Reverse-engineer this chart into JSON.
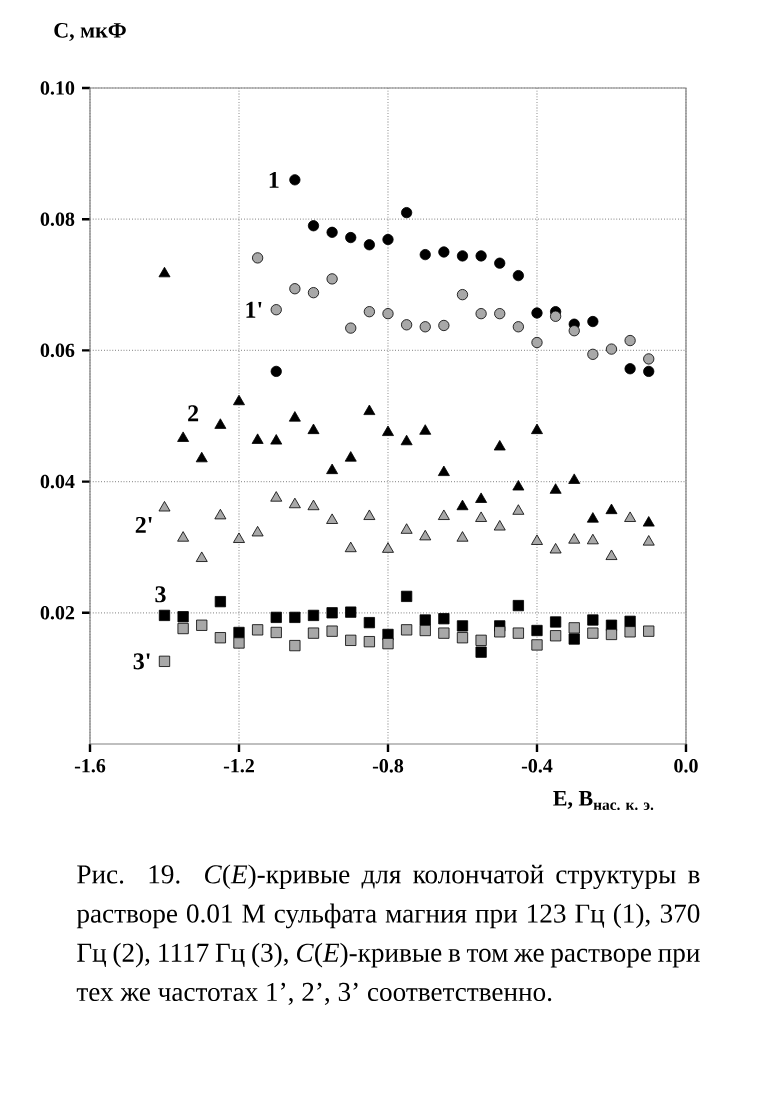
{
  "chart_data": {
    "type": "scatter",
    "xlabel": "\\text{E, B}_{\\text{нас. к. э.}}",
    "ylabel": "C, мкФ",
    "xlim": [
      -1.6,
      0.0
    ],
    "ylim": [
      0,
      0.1
    ],
    "xticks": [
      -1.6,
      -1.2,
      -0.8,
      -0.4,
      {
        "value": 0.0,
        "label": "0.0"
      }
    ],
    "yticks": [
      0.02,
      0.04,
      0.06,
      0.08,
      {
        "value": 0.1,
        "label": "0.10"
      }
    ],
    "grid": true,
    "legend": false,
    "series": [
      {
        "name": "1",
        "color": "#000000",
        "marker": "circle",
        "x": [
          -1.05,
          -1.0,
          -0.95,
          -0.9,
          -0.85,
          -0.8,
          -0.75,
          -0.7,
          -0.65,
          -0.6,
          -0.55,
          -0.5,
          -0.45,
          -0.4,
          -0.35,
          -0.3,
          -0.25,
          -0.15,
          -0.1,
          -1.1
        ],
        "values": [
          0.086,
          0.079,
          0.078,
          0.0772,
          0.0761,
          0.0769,
          0.081,
          0.0746,
          0.075,
          0.0744,
          0.0744,
          0.0733,
          0.0714,
          0.0657,
          0.0659,
          0.064,
          0.0644,
          0.0572,
          0.0568,
          0.0568
        ]
      },
      {
        "name": "1'",
        "color": "#a8a8a8",
        "marker": "circle",
        "x": [
          -1.1,
          -1.15,
          -1.05,
          -1.0,
          -0.95,
          -0.9,
          -0.85,
          -0.8,
          -0.75,
          -0.7,
          -0.65,
          -0.6,
          -0.55,
          -0.5,
          -0.45,
          -0.4,
          -0.35,
          -0.3,
          -0.25,
          -0.2,
          -0.15,
          -0.1
        ],
        "values": [
          0.0662,
          0.0741,
          0.0694,
          0.0688,
          0.0709,
          0.0634,
          0.0659,
          0.0656,
          0.0639,
          0.0636,
          0.0638,
          0.0685,
          0.0656,
          0.0656,
          0.0636,
          0.0612,
          0.0652,
          0.063,
          0.0594,
          0.0602,
          0.0615,
          0.0587
        ]
      },
      {
        "name": "2",
        "color": "#000000",
        "marker": "triangle",
        "x": [
          -1.35,
          -1.4,
          -1.3,
          -1.25,
          -1.2,
          -1.15,
          -1.1,
          -1.05,
          -1.0,
          -0.95,
          -0.9,
          -0.85,
          -0.8,
          -0.75,
          -0.7,
          -0.65,
          -0.6,
          -0.55,
          -0.5,
          -0.45,
          -0.4,
          -0.35,
          -0.3,
          -0.25,
          -0.2,
          -0.1
        ],
        "values": [
          0.0466,
          0.0717,
          0.0435,
          0.0486,
          0.0522,
          0.0463,
          0.0462,
          0.0497,
          0.0478,
          0.0417,
          0.0436,
          0.0507,
          0.0475,
          0.0461,
          0.0477,
          0.0414,
          0.0362,
          0.0373,
          0.0453,
          0.0392,
          0.0478,
          0.0387,
          0.0402,
          0.0343,
          0.0356,
          0.0337
        ]
      },
      {
        "name": "2'",
        "color": "#a8a8a8",
        "marker": "triangle",
        "x": [
          -1.4,
          -1.35,
          -1.3,
          -1.25,
          -1.2,
          -1.15,
          -1.1,
          -1.05,
          -1.0,
          -0.95,
          -0.9,
          -0.85,
          -0.8,
          -0.75,
          -0.7,
          -0.65,
          -0.6,
          -0.55,
          -0.5,
          -0.45,
          -0.4,
          -0.35,
          -0.3,
          -0.25,
          -0.2,
          -0.15,
          -0.1
        ],
        "values": [
          0.036,
          0.0314,
          0.0283,
          0.0348,
          0.0312,
          0.0322,
          0.0375,
          0.0365,
          0.0362,
          0.0341,
          0.0298,
          0.0347,
          0.0297,
          0.0326,
          0.0316,
          0.0347,
          0.0314,
          0.0344,
          0.0331,
          0.0355,
          0.0309,
          0.0296,
          0.0311,
          0.031,
          0.0286,
          0.0344,
          0.0308
        ]
      },
      {
        "name": "3",
        "color": "#000000",
        "marker": "square",
        "x": [
          -1.4,
          -1.35,
          -1.25,
          -1.2,
          -1.1,
          -1.05,
          -1.0,
          -0.95,
          -0.9,
          -0.85,
          -0.8,
          -0.75,
          -0.7,
          -0.65,
          -0.6,
          -0.55,
          -0.5,
          -0.45,
          -0.4,
          -0.35,
          -0.3,
          -0.25,
          -0.2,
          -0.15
        ],
        "values": [
          0.0196,
          0.0194,
          0.0217,
          0.017,
          0.0193,
          0.0193,
          0.0196,
          0.02,
          0.0201,
          0.0185,
          0.0167,
          0.0225,
          0.0189,
          0.0191,
          0.018,
          0.014,
          0.018,
          0.0211,
          0.0173,
          0.0186,
          0.016,
          0.0189,
          0.0181,
          0.0187
        ]
      },
      {
        "name": "3'",
        "color": "#a8a8a8",
        "marker": "square",
        "x": [
          -1.4,
          -1.35,
          -1.3,
          -1.25,
          -1.2,
          -1.15,
          -1.1,
          -1.05,
          -1.0,
          -0.95,
          -0.9,
          -0.85,
          -0.8,
          -0.75,
          -0.7,
          -0.65,
          -0.6,
          -0.55,
          -0.5,
          -0.45,
          -0.4,
          -0.35,
          -0.3,
          -0.25,
          -0.2,
          -0.15,
          -0.1
        ],
        "values": [
          0.0126,
          0.0176,
          0.0181,
          0.0162,
          0.0154,
          0.0174,
          0.017,
          0.015,
          0.0169,
          0.0172,
          0.0158,
          0.0156,
          0.0153,
          0.0174,
          0.0173,
          0.0169,
          0.0162,
          0.0158,
          0.0171,
          0.0169,
          0.0151,
          0.0165,
          0.0177,
          0.0169,
          0.0167,
          0.0171,
          0.0172
        ]
      }
    ],
    "annotations": [
      "Рис. 19. *C*(*E*)-кривые для колончатой структуры в растворе 0.01 М сульфата магния при 123 Гц (1), 370 Гц (2), 1117 Гц (3), *C*(*E*)-кривые в том же растворе при тех же частотах 1’, 2’, 3’ соответственно."
    ]
  }
}
